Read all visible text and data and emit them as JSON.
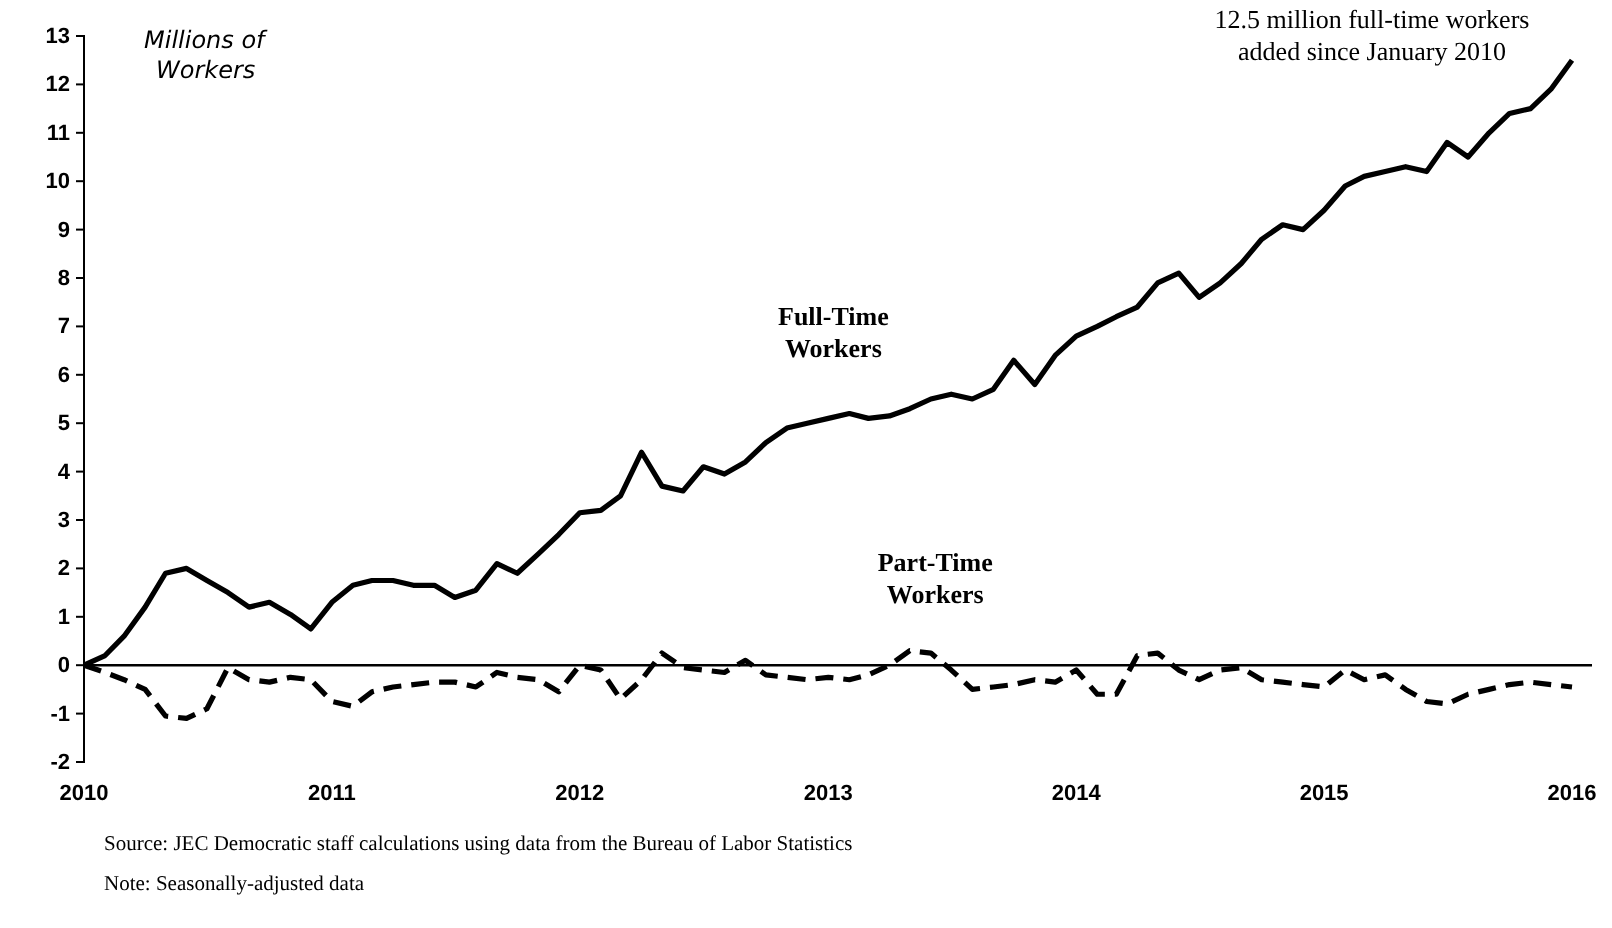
{
  "chart_data": {
    "type": "line",
    "ylabel": "Millions of Workers",
    "x": [
      "2010-01",
      "2010-02",
      "2010-03",
      "2010-04",
      "2010-05",
      "2010-06",
      "2010-07",
      "2010-08",
      "2010-09",
      "2010-10",
      "2010-11",
      "2010-12",
      "2011-01",
      "2011-02",
      "2011-03",
      "2011-04",
      "2011-05",
      "2011-06",
      "2011-07",
      "2011-08",
      "2011-09",
      "2011-10",
      "2011-11",
      "2011-12",
      "2012-01",
      "2012-02",
      "2012-03",
      "2012-04",
      "2012-05",
      "2012-06",
      "2012-07",
      "2012-08",
      "2012-09",
      "2012-10",
      "2012-11",
      "2012-12",
      "2013-01",
      "2013-02",
      "2013-03",
      "2013-04",
      "2013-05",
      "2013-06",
      "2013-07",
      "2013-08",
      "2013-09",
      "2013-10",
      "2013-11",
      "2013-12",
      "2014-01",
      "2014-02",
      "2014-03",
      "2014-04",
      "2014-05",
      "2014-06",
      "2014-07",
      "2014-08",
      "2014-09",
      "2014-10",
      "2014-11",
      "2014-12",
      "2015-01",
      "2015-02",
      "2015-03",
      "2015-04",
      "2015-05",
      "2015-06",
      "2015-07",
      "2015-08",
      "2015-09",
      "2015-10",
      "2015-11",
      "2015-12",
      "2016-01"
    ],
    "series": [
      {
        "name": "Full-Time Workers",
        "color": "#000000",
        "line_style": "solid",
        "values": [
          0,
          0.2,
          0.6,
          1.2,
          1.9,
          2.0,
          1.75,
          1.5,
          1.2,
          1.3,
          1.05,
          0.75,
          1.3,
          1.65,
          1.75,
          1.75,
          1.65,
          1.65,
          1.4,
          1.55,
          2.1,
          1.9,
          2.3,
          2.7,
          3.15,
          3.2,
          3.5,
          4.4,
          3.7,
          3.6,
          4.1,
          3.95,
          4.2,
          4.6,
          4.9,
          5.0,
          5.1,
          5.2,
          5.1,
          5.15,
          5.3,
          5.5,
          5.6,
          5.5,
          5.7,
          6.3,
          5.8,
          6.4,
          6.8,
          7.0,
          7.2,
          7.4,
          7.9,
          8.1,
          7.6,
          7.9,
          8.3,
          8.8,
          9.1,
          9.0,
          9.4,
          9.9,
          10.1,
          10.2,
          10.3,
          10.2,
          10.8,
          10.5,
          11.0,
          11.4,
          11.5,
          11.9,
          12.5
        ]
      },
      {
        "name": "Part-Time Workers",
        "color": "#000000",
        "line_style": "dashed",
        "values": [
          0,
          -0.15,
          -0.3,
          -0.5,
          -1.05,
          -1.1,
          -0.9,
          -0.05,
          -0.3,
          -0.35,
          -0.25,
          -0.3,
          -0.75,
          -0.85,
          -0.55,
          -0.45,
          -0.4,
          -0.35,
          -0.35,
          -0.45,
          -0.15,
          -0.25,
          -0.3,
          -0.55,
          0.0,
          -0.1,
          -0.7,
          -0.3,
          0.25,
          -0.05,
          -0.1,
          -0.15,
          0.1,
          -0.2,
          -0.25,
          -0.3,
          -0.25,
          -0.3,
          -0.2,
          0.0,
          0.3,
          0.25,
          -0.1,
          -0.5,
          -0.45,
          -0.4,
          -0.3,
          -0.35,
          -0.1,
          -0.6,
          -0.6,
          0.2,
          0.25,
          -0.1,
          -0.3,
          -0.1,
          -0.05,
          -0.3,
          -0.35,
          -0.4,
          -0.45,
          -0.1,
          -0.3,
          -0.2,
          -0.5,
          -0.75,
          -0.8,
          -0.6,
          -0.5,
          -0.4,
          -0.35,
          -0.4,
          -0.45
        ]
      }
    ],
    "xlim": [
      "2010-01",
      "2016-01"
    ],
    "xticks": [
      {
        "value": "2010-01",
        "label": "2010"
      },
      {
        "value": "2011-01",
        "label": "2011"
      },
      {
        "value": "2012-01",
        "label": "2012"
      },
      {
        "value": "2013-01",
        "label": "2013"
      },
      {
        "value": "2014-01",
        "label": "2014"
      },
      {
        "value": "2015-01",
        "label": "2015"
      },
      {
        "value": "2016-01",
        "label": "2016"
      }
    ],
    "ylim": [
      -2,
      13
    ],
    "yticks": [
      -2,
      -1,
      0,
      1,
      2,
      3,
      4,
      5,
      6,
      7,
      8,
      9,
      10,
      11,
      12,
      13
    ],
    "ref_lines": [
      {
        "axis": "y",
        "value": 0,
        "color": "#000000"
      }
    ],
    "grid": false,
    "annotations": [
      {
        "text": "12.5 million full-time workers added since January 2010",
        "x": "2016-01",
        "y": 12.5
      },
      "Source: JEC Democratic staff calculations using data from the Bureau of Labor Statistics",
      "Note: Seasonally-adjusted data"
    ]
  }
}
